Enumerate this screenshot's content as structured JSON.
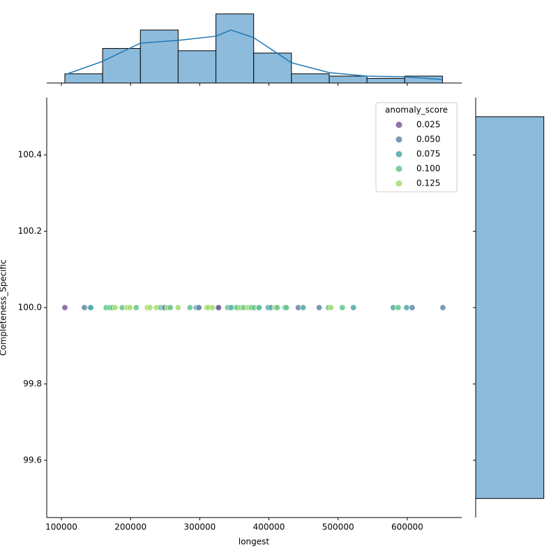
{
  "chart_data": [
    {
      "type": "scatter",
      "x_label": "longest",
      "y_label": "Completeness_Specific",
      "xlim": [
        78800,
        678800
      ],
      "ylim": [
        99.45,
        100.55
      ],
      "xticks": [
        100000,
        200000,
        300000,
        400000,
        500000,
        600000
      ],
      "yticks": [
        99.6,
        99.8,
        {
          "value": 100.0,
          "label": "100.0"
        },
        100.2,
        100.4
      ],
      "x": [
        105000,
        133300,
        141400,
        142400,
        164600,
        169700,
        173700,
        177800,
        187900,
        194900,
        199000,
        208100,
        224200,
        228300,
        237400,
        243400,
        247500,
        249500,
        253500,
        257600,
        268700,
        285900,
        295000,
        297000,
        299000,
        310100,
        312100,
        318200,
        326300,
        327300,
        340400,
        345500,
        352500,
        354500,
        358600,
        363600,
        369700,
        374700,
        378800,
        384800,
        385900,
        399000,
        403000,
        409100,
        412100,
        423200,
        425300,
        442400,
        449500,
        472700,
        485900,
        489900,
        506100,
        522200,
        579800,
        586900,
        599000,
        607100,
        651500
      ],
      "y": [
        100,
        100,
        100,
        100,
        100,
        100,
        100,
        100,
        100,
        100,
        100,
        100,
        100,
        100,
        100,
        100,
        100,
        100,
        100,
        100,
        100,
        100,
        100,
        100,
        100,
        100,
        100,
        100,
        100,
        100,
        100,
        100,
        100,
        100,
        100,
        100,
        100,
        100,
        100,
        100,
        100,
        100,
        100,
        100,
        100,
        100,
        100,
        100,
        100,
        100,
        100,
        100,
        100,
        100,
        100,
        100,
        100,
        100,
        100
      ],
      "hue": [
        0.02,
        0.05,
        0.07,
        0.08,
        0.09,
        0.09,
        0.11,
        0.12,
        0.1,
        0.12,
        0.13,
        0.11,
        0.13,
        0.12,
        0.13,
        0.1,
        0.07,
        0.06,
        0.12,
        0.1,
        0.13,
        0.1,
        0.06,
        0.07,
        0.06,
        0.13,
        0.13,
        0.12,
        0.04,
        0.03,
        0.09,
        0.07,
        0.1,
        0.11,
        0.12,
        0.11,
        0.13,
        0.1,
        0.11,
        0.08,
        0.09,
        0.08,
        0.07,
        0.12,
        0.1,
        0.09,
        0.11,
        0.04,
        0.07,
        0.05,
        0.1,
        0.12,
        0.09,
        0.07,
        0.08,
        0.11,
        0.08,
        0.06,
        0.04
      ],
      "legend": {
        "title": "anomaly_score",
        "position": "upper right",
        "entries": [
          {
            "value": 0.025,
            "label": "0.025",
            "color": "#7b5a9c"
          },
          {
            "value": 0.05,
            "label": "0.050",
            "color": "#6487a6"
          },
          {
            "value": 0.075,
            "label": "0.075",
            "color": "#4fa8a4"
          },
          {
            "value": 0.1,
            "label": "0.100",
            "color": "#62c58b"
          },
          {
            "value": 0.125,
            "label": "0.125",
            "color": "#a6dc6c"
          }
        ]
      }
    },
    {
      "type": "histogram",
      "orientation": "vertical",
      "color": "#8dbbdc",
      "line_color": "#1f77b4",
      "bins": [
        105000,
        159600,
        214200,
        268800,
        323400,
        378000,
        432600,
        487200,
        541800,
        596400,
        651000
      ],
      "counts": [
        4,
        15,
        23,
        14,
        30,
        13,
        4,
        3,
        2,
        3
      ],
      "ylim": [
        0,
        33
      ],
      "kde_x": [
        105000,
        159600,
        214200,
        268800,
        323400,
        345000,
        378000,
        432600,
        487200,
        541800,
        596400,
        651000
      ],
      "kde_y": [
        3.6,
        9.4,
        17.3,
        18.5,
        20.3,
        23,
        19.7,
        8.8,
        4.5,
        3,
        2.7,
        1.5
      ]
    },
    {
      "type": "histogram",
      "orientation": "horizontal",
      "color": "#8dbbdc",
      "bins": [
        99.5,
        100.5
      ],
      "counts": [
        111
      ],
      "xlim": [
        0,
        125
      ]
    }
  ]
}
